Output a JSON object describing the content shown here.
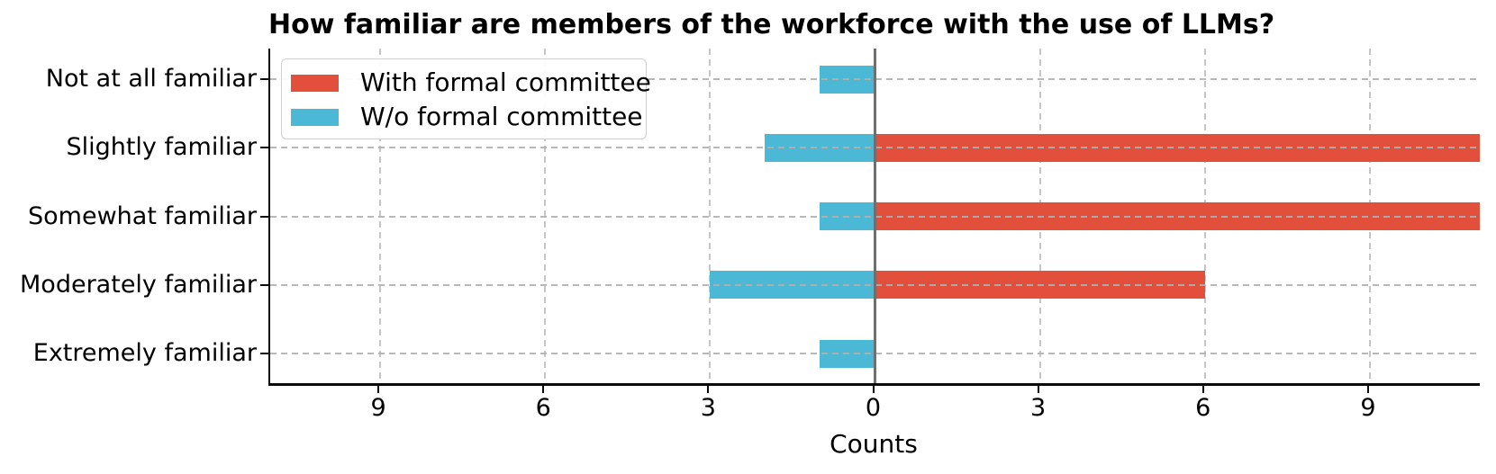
{
  "chart_data": {
    "type": "bar",
    "variant": "horizontal-diverging",
    "title": "How familiar are members of the workforce with the use of LLMs?",
    "xlabel": "Counts",
    "categories": [
      "Not at all familiar",
      "Slightly familiar",
      "Somewhat familiar",
      "Moderately familiar",
      "Extremely familiar"
    ],
    "series": [
      {
        "name": "With formal committee",
        "color": "#E2503C",
        "side": "right",
        "values": [
          0,
          11,
          11,
          6,
          0
        ]
      },
      {
        "name": "W/o formal committee",
        "color": "#4BB8D6",
        "side": "left",
        "values": [
          1,
          2,
          1,
          3,
          1
        ]
      }
    ],
    "xlim": [
      -11,
      11
    ],
    "xticks": [
      -9,
      -6,
      -3,
      0,
      3,
      6,
      9
    ],
    "xtick_labels": [
      "9",
      "6",
      "3",
      "0",
      "3",
      "6",
      "9"
    ],
    "grid": "dashed",
    "legend_position": "upper-left",
    "zero_line_color": "#6f6f6f",
    "grid_color": "#c6c6c6"
  }
}
